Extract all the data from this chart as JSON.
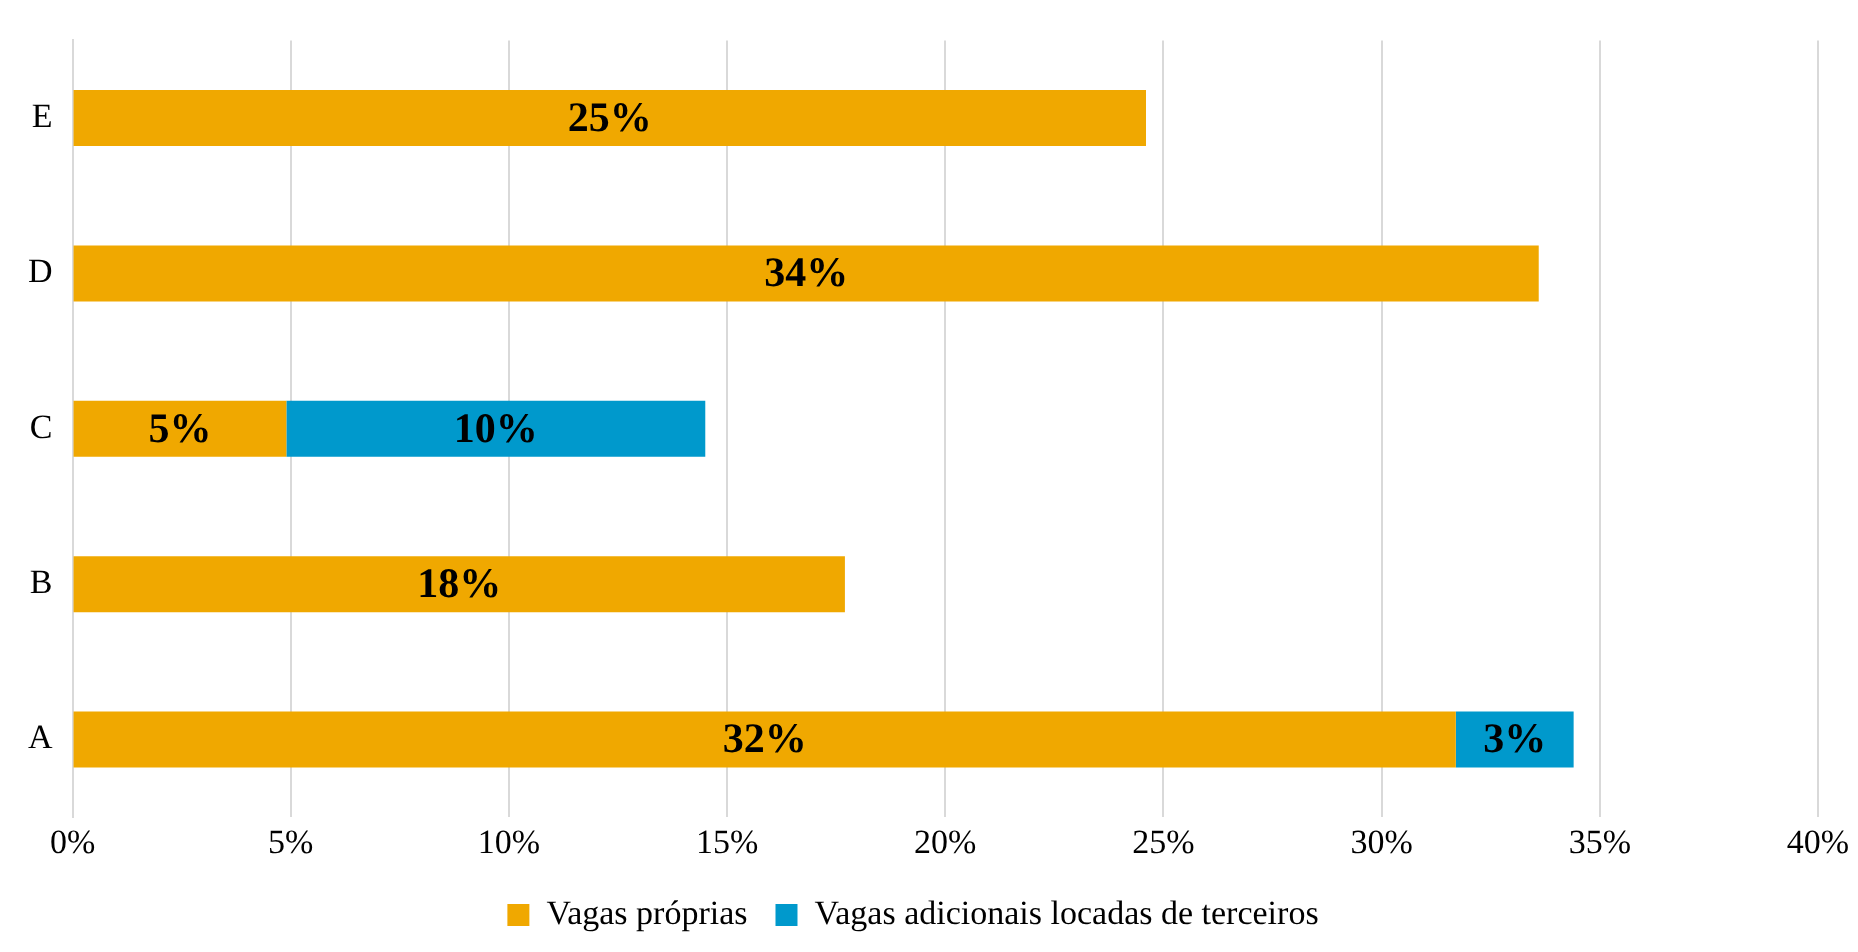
{
  "chart_data": {
    "type": "bar",
    "orientation": "horizontal",
    "stacked": true,
    "categories": [
      "E",
      "D",
      "C",
      "B",
      "A"
    ],
    "series": [
      {
        "name": "Vagas próprias",
        "color": "#f0a800",
        "values": [
          24.6,
          33.6,
          4.9,
          17.7,
          31.7
        ],
        "value_labels": [
          "25%",
          "34%",
          "5%",
          "18%",
          "32%"
        ]
      },
      {
        "name": "Vagas adicionais locadas de terceiros",
        "color": "#0099cc",
        "values": [
          null,
          null,
          9.6,
          null,
          2.7
        ],
        "value_labels": [
          null,
          null,
          "10%",
          null,
          "3%"
        ]
      }
    ],
    "xlim": [
      0,
      40
    ],
    "xticks": [
      {
        "value": 0,
        "label": "0%"
      },
      {
        "value": 5,
        "label": "5%"
      },
      {
        "value": 10,
        "label": "10%"
      },
      {
        "value": 15,
        "label": "15%"
      },
      {
        "value": 20,
        "label": "20%"
      },
      {
        "value": 25,
        "label": "25%"
      },
      {
        "value": 30,
        "label": "30%"
      },
      {
        "value": 35,
        "label": "35%"
      },
      {
        "value": 40,
        "label": "40%"
      }
    ],
    "grid": "x",
    "legend": "bottom"
  }
}
